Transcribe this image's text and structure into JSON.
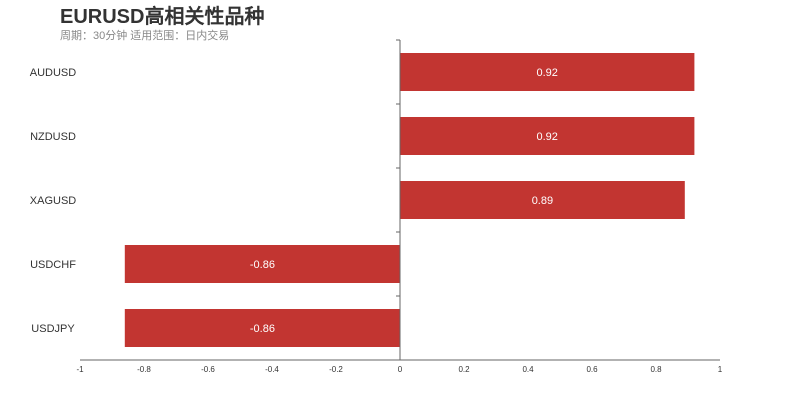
{
  "chart_data": {
    "type": "bar",
    "orientation": "horizontal",
    "title": "EURUSD高相关性品种",
    "subtitle": "周期：30分钟 适用范围：日内交易",
    "categories": [
      "AUDUSD",
      "NZDUSD",
      "XAGUSD",
      "USDCHF",
      "USDJPY"
    ],
    "values": [
      0.92,
      0.92,
      0.89,
      -0.86,
      -0.86
    ],
    "xlim": [
      -1,
      1
    ],
    "xticks": [
      "-1",
      "-0.8",
      "-0.6",
      "-0.4",
      "-0.2",
      "0",
      "0.2",
      "0.4",
      "0.6",
      "0.8",
      "1"
    ],
    "grid": false,
    "bar_color": "#c23531"
  }
}
